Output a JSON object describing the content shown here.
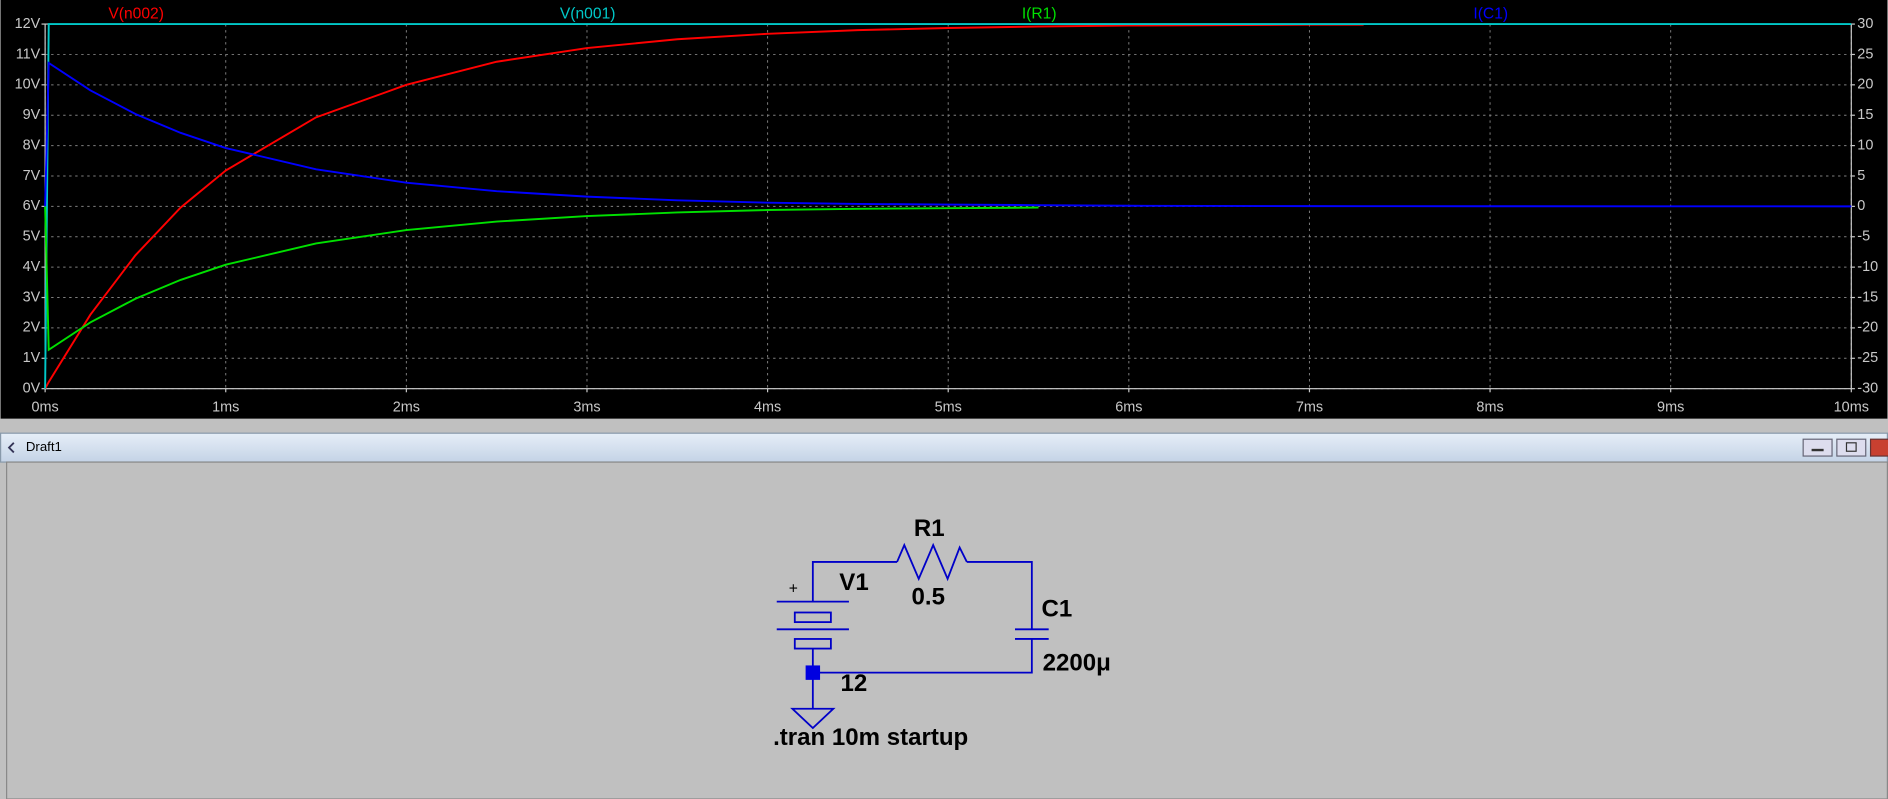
{
  "chart_data": {
    "type": "line",
    "x": [
      0,
      0.02,
      0.25,
      0.5,
      0.75,
      1,
      1.5,
      2,
      2.5,
      3,
      3.5,
      4,
      4.5,
      5,
      5.5,
      6,
      7,
      7.3,
      8,
      9,
      10
    ],
    "series": [
      {
        "name": "V(n002)",
        "color": "#ff0000",
        "values": [
          0,
          0.22,
          2.43,
          4.39,
          5.96,
          7.18,
          8.93,
          10.0,
          10.76,
          11.21,
          11.5,
          11.68,
          11.8,
          11.87,
          11.92,
          11.95,
          11.98,
          11.98,
          null,
          null,
          null
        ]
      },
      {
        "name": "V(n001)",
        "color": "#00c8c8",
        "values": [
          0,
          12,
          12,
          12,
          12,
          12,
          12,
          12,
          12,
          12,
          12,
          12,
          12,
          12,
          12,
          12,
          12,
          12,
          12,
          12,
          12
        ]
      },
      {
        "name": "I(R1)",
        "color": "#00e000",
        "axis": "y2",
        "values": [
          0,
          -23.6,
          -19.1,
          -15.2,
          -12.1,
          -9.6,
          -6.1,
          -3.9,
          -2.5,
          -1.6,
          -1.0,
          -0.6,
          -0.4,
          -0.3,
          -0.2,
          null,
          null,
          null,
          null,
          null,
          null
        ]
      },
      {
        "name": "I(C1)",
        "color": "#0000ff",
        "axis": "y2",
        "values": [
          0,
          23.6,
          19.1,
          15.2,
          12.1,
          9.6,
          6.1,
          3.9,
          2.5,
          1.6,
          1.0,
          0.6,
          0.4,
          0.3,
          0.2,
          0.1,
          0.04,
          0.03,
          0.02,
          0.01,
          0
        ]
      }
    ],
    "xlim": [
      0,
      10
    ],
    "xticks": [
      {
        "value": 0,
        "label": "0ms"
      },
      {
        "value": 1,
        "label": "1ms"
      },
      {
        "value": 2,
        "label": "2ms"
      },
      {
        "value": 3,
        "label": "3ms"
      },
      {
        "value": 4,
        "label": "4ms"
      },
      {
        "value": 5,
        "label": "5ms"
      },
      {
        "value": 6,
        "label": "6ms"
      },
      {
        "value": 7,
        "label": "7ms"
      },
      {
        "value": 8,
        "label": "8ms"
      },
      {
        "value": 9,
        "label": "9ms"
      },
      {
        "value": 10,
        "label": "10ms"
      }
    ],
    "ylim": [
      0,
      12
    ],
    "yticks": [
      {
        "value": 0,
        "label": "0V"
      },
      {
        "value": 1,
        "label": "1V"
      },
      {
        "value": 2,
        "label": "2V"
      },
      {
        "value": 3,
        "label": "3V"
      },
      {
        "value": 4,
        "label": "4V"
      },
      {
        "value": 5,
        "label": "5V"
      },
      {
        "value": 6,
        "label": "6V"
      },
      {
        "value": 7,
        "label": "7V"
      },
      {
        "value": 8,
        "label": "8V"
      },
      {
        "value": 9,
        "label": "9V"
      },
      {
        "value": 10,
        "label": "10V"
      },
      {
        "value": 11,
        "label": "11V"
      },
      {
        "value": 12,
        "label": "12V"
      }
    ],
    "y2lim": [
      -30,
      30
    ],
    "y2ticks": [
      -30,
      -25,
      -20,
      -15,
      -10,
      -5,
      0,
      5,
      10,
      15,
      20,
      25,
      30
    ],
    "grid": true
  },
  "window": {
    "title": "Draft1"
  },
  "schematic": {
    "source_name": "V1",
    "source_polarity": "+",
    "source_value": "12",
    "resistor_name": "R1",
    "resistor_value": "0.5",
    "capacitor_name": "C1",
    "capacitor_value": "2200μ",
    "directive": ".tran 10m startup"
  }
}
